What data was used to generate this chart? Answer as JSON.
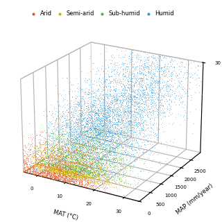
{
  "legend_labels": [
    "Arid",
    "Semi-arid",
    "Sub-humid",
    "Humid"
  ],
  "legend_colors": [
    "#e05a2b",
    "#c8b400",
    "#4db34d",
    "#3399dd"
  ],
  "xlabel": "MAP (mm/year)",
  "ylabel": "MAT (°C)",
  "zlabel": "",
  "background_color": "#ffffff",
  "n_points": 12000,
  "seed": 42,
  "elev": 22,
  "azim": -60
}
